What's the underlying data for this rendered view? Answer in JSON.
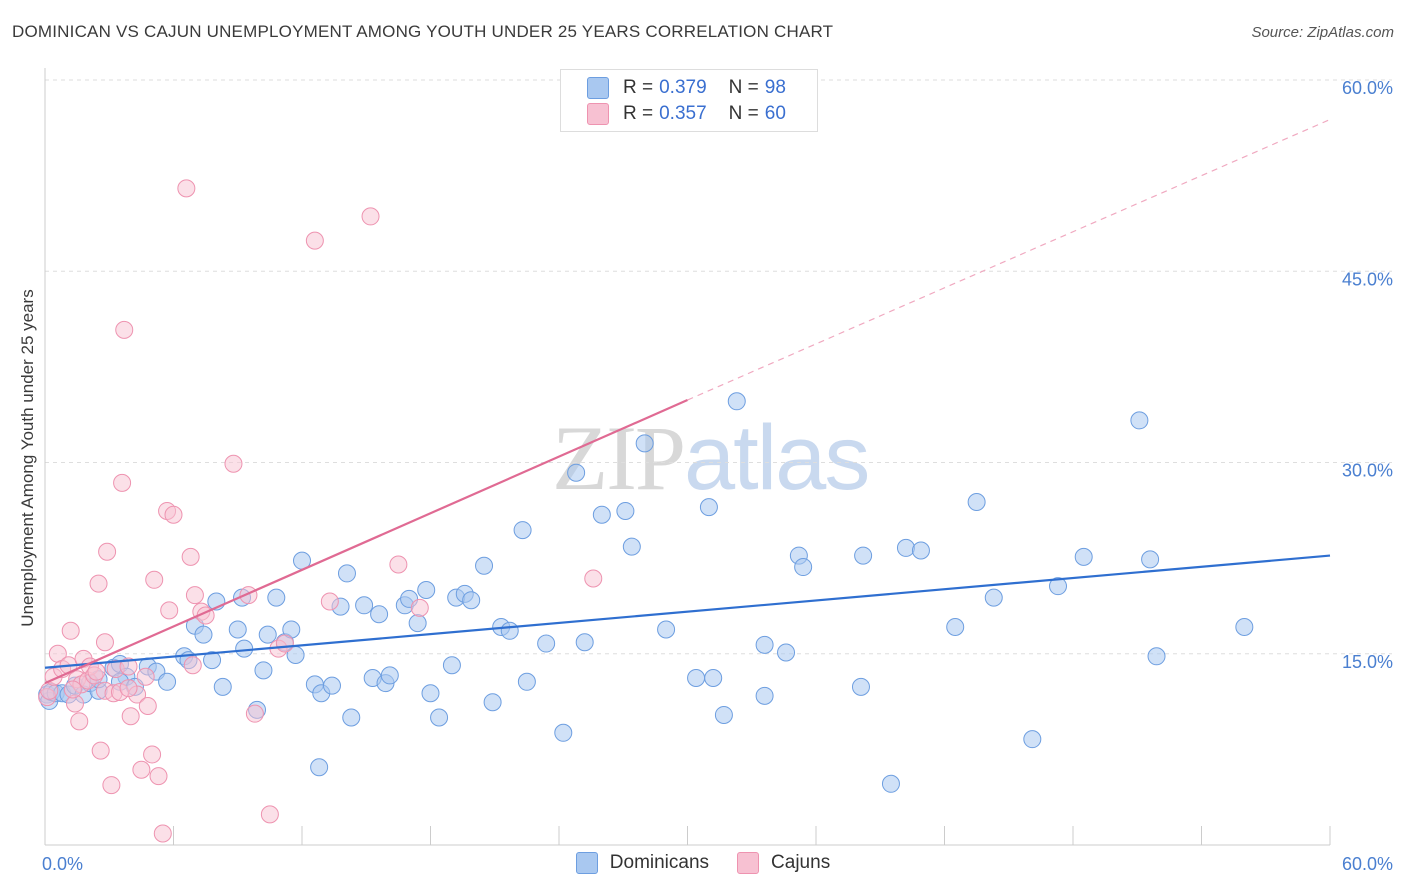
{
  "header": {
    "title": "DOMINICAN VS CAJUN UNEMPLOYMENT AMONG YOUTH UNDER 25 YEARS CORRELATION CHART",
    "source": "Source: ZipAtlas.com"
  },
  "watermark": {
    "zip": "ZIP",
    "atlas": "atlas"
  },
  "legend": {
    "rows": [
      {
        "r_label": "R =",
        "r_value": "0.379",
        "n_label": "N =",
        "n_value": "98"
      },
      {
        "r_label": "R =",
        "r_value": "0.357",
        "n_label": "N =",
        "n_value": "60"
      }
    ]
  },
  "bottom_legend": {
    "dominicans": "Dominicans",
    "cajuns": "Cajuns"
  },
  "colors": {
    "dominican_fill": "#a9c8f0",
    "dominican_stroke": "#6d9ee0",
    "dominican_line": "#2f6fd0",
    "cajun_fill": "#f7c1d2",
    "cajun_stroke": "#ee93b0",
    "cajun_line": "#e06a93",
    "grid": "#dedede",
    "tick_text": "#4a7fd0"
  },
  "chart_data": {
    "type": "scatter",
    "title": "DOMINICAN VS CAJUN UNEMPLOYMENT AMONG YOUTH UNDER 25 YEARS CORRELATION CHART",
    "xlabel": "",
    "ylabel": "Unemployment Among Youth under 25 years",
    "xlim": [
      0,
      60
    ],
    "ylim": [
      0,
      60
    ],
    "x_tick_labels": [
      "0.0%",
      "60.0%"
    ],
    "y_ticks": [
      15,
      30,
      45,
      60
    ],
    "y_tick_labels": [
      "15.0%",
      "30.0%",
      "45.0%",
      "60.0%"
    ],
    "grid": true,
    "legend_position": "top-center",
    "series": [
      {
        "name": "Dominicans",
        "r": 0.379,
        "n": 98,
        "trend": {
          "x": [
            0,
            60
          ],
          "y": [
            13.9,
            22.7
          ],
          "style": "solid"
        },
        "points": [
          [
            0.1,
            11.8
          ],
          [
            0.2,
            11.3
          ],
          [
            0.3,
            12.0
          ],
          [
            0.5,
            11.9
          ],
          [
            0.8,
            11.9
          ],
          [
            1.1,
            11.8
          ],
          [
            1.4,
            12.5
          ],
          [
            1.8,
            11.8
          ],
          [
            2.1,
            12.7
          ],
          [
            2.5,
            12.1
          ],
          [
            2.5,
            13.0
          ],
          [
            3.2,
            13.9
          ],
          [
            3.5,
            14.2
          ],
          [
            3.8,
            13.2
          ],
          [
            3.5,
            12.8
          ],
          [
            4.2,
            12.4
          ],
          [
            4.8,
            14.0
          ],
          [
            5.2,
            13.6
          ],
          [
            5.7,
            12.8
          ],
          [
            6.5,
            14.8
          ],
          [
            6.7,
            14.5
          ],
          [
            7.0,
            17.2
          ],
          [
            7.4,
            16.5
          ],
          [
            7.8,
            14.5
          ],
          [
            8.0,
            19.1
          ],
          [
            8.3,
            12.4
          ],
          [
            9.0,
            16.9
          ],
          [
            9.2,
            19.4
          ],
          [
            9.3,
            15.4
          ],
          [
            9.9,
            10.6
          ],
          [
            10.2,
            13.7
          ],
          [
            10.4,
            16.5
          ],
          [
            10.8,
            19.4
          ],
          [
            11.2,
            15.9
          ],
          [
            11.5,
            16.9
          ],
          [
            11.7,
            14.9
          ],
          [
            12.0,
            22.3
          ],
          [
            12.6,
            12.6
          ],
          [
            12.8,
            6.1
          ],
          [
            12.9,
            11.9
          ],
          [
            13.4,
            12.5
          ],
          [
            13.8,
            18.7
          ],
          [
            14.1,
            21.3
          ],
          [
            14.3,
            10.0
          ],
          [
            14.9,
            18.8
          ],
          [
            15.3,
            13.1
          ],
          [
            15.6,
            18.1
          ],
          [
            15.9,
            12.7
          ],
          [
            16.1,
            13.3
          ],
          [
            16.8,
            18.8
          ],
          [
            17.0,
            19.3
          ],
          [
            17.4,
            17.4
          ],
          [
            17.8,
            20.0
          ],
          [
            18.0,
            11.9
          ],
          [
            18.4,
            10.0
          ],
          [
            19.0,
            14.1
          ],
          [
            19.2,
            19.4
          ],
          [
            19.6,
            19.7
          ],
          [
            19.9,
            19.2
          ],
          [
            20.5,
            21.9
          ],
          [
            20.9,
            11.2
          ],
          [
            21.3,
            17.1
          ],
          [
            21.7,
            16.8
          ],
          [
            22.3,
            24.7
          ],
          [
            22.5,
            12.8
          ],
          [
            23.4,
            15.8
          ],
          [
            24.2,
            8.8
          ],
          [
            24.8,
            29.2
          ],
          [
            25.2,
            15.9
          ],
          [
            26.0,
            25.9
          ],
          [
            27.1,
            26.2
          ],
          [
            27.4,
            23.4
          ],
          [
            28.0,
            31.5
          ],
          [
            29.0,
            16.9
          ],
          [
            30.4,
            13.1
          ],
          [
            31.0,
            26.5
          ],
          [
            31.2,
            13.1
          ],
          [
            31.7,
            10.2
          ],
          [
            32.3,
            34.8
          ],
          [
            33.6,
            11.7
          ],
          [
            33.6,
            15.7
          ],
          [
            34.6,
            15.1
          ],
          [
            35.2,
            22.7
          ],
          [
            35.4,
            21.8
          ],
          [
            38.1,
            12.4
          ],
          [
            38.2,
            22.7
          ],
          [
            39.5,
            4.8
          ],
          [
            40.2,
            23.3
          ],
          [
            40.9,
            23.1
          ],
          [
            42.5,
            17.1
          ],
          [
            43.5,
            26.9
          ],
          [
            44.3,
            19.4
          ],
          [
            46.1,
            8.3
          ],
          [
            47.3,
            20.3
          ],
          [
            48.5,
            22.6
          ],
          [
            51.1,
            33.3
          ],
          [
            51.6,
            22.4
          ],
          [
            51.9,
            14.8
          ],
          [
            56.0,
            17.1
          ]
        ]
      },
      {
        "name": "Cajuns",
        "r": 0.357,
        "n": 60,
        "trend": {
          "x": [
            0,
            30
          ],
          "y": [
            12.7,
            34.9
          ],
          "dashed_extension": {
            "x": [
              30,
              60
            ],
            "y": [
              34.9,
              56.9
            ]
          }
        },
        "points": [
          [
            0.1,
            11.6
          ],
          [
            0.2,
            12.1
          ],
          [
            0.4,
            13.2
          ],
          [
            0.6,
            15.0
          ],
          [
            0.8,
            13.8
          ],
          [
            1.1,
            14.1
          ],
          [
            1.2,
            16.8
          ],
          [
            1.4,
            11.1
          ],
          [
            1.5,
            13.0
          ],
          [
            1.6,
            9.7
          ],
          [
            1.7,
            12.6
          ],
          [
            1.8,
            14.6
          ],
          [
            2.0,
            12.9
          ],
          [
            2.1,
            14.0
          ],
          [
            2.3,
            13.3
          ],
          [
            2.5,
            20.5
          ],
          [
            2.6,
            7.4
          ],
          [
            2.8,
            12.1
          ],
          [
            2.8,
            15.9
          ],
          [
            2.9,
            23.0
          ],
          [
            3.1,
            4.7
          ],
          [
            3.2,
            11.9
          ],
          [
            3.3,
            13.8
          ],
          [
            3.5,
            12.0
          ],
          [
            3.6,
            28.4
          ],
          [
            3.7,
            40.4
          ],
          [
            3.9,
            14.0
          ],
          [
            4.0,
            10.1
          ],
          [
            4.3,
            11.8
          ],
          [
            4.5,
            5.9
          ],
          [
            4.7,
            13.2
          ],
          [
            4.8,
            10.9
          ],
          [
            5.0,
            7.1
          ],
          [
            5.1,
            20.8
          ],
          [
            5.3,
            5.4
          ],
          [
            5.5,
            0.9
          ],
          [
            5.7,
            26.2
          ],
          [
            5.8,
            18.4
          ],
          [
            6.0,
            25.9
          ],
          [
            6.6,
            51.5
          ],
          [
            6.8,
            22.6
          ],
          [
            6.9,
            14.1
          ],
          [
            7.0,
            19.6
          ],
          [
            7.3,
            18.3
          ],
          [
            7.5,
            18.0
          ],
          [
            8.8,
            29.9
          ],
          [
            9.5,
            19.6
          ],
          [
            9.8,
            10.3
          ],
          [
            10.5,
            2.4
          ],
          [
            10.9,
            15.4
          ],
          [
            11.2,
            15.8
          ],
          [
            12.6,
            47.4
          ],
          [
            13.3,
            19.1
          ],
          [
            15.2,
            49.3
          ],
          [
            16.5,
            22.0
          ],
          [
            17.5,
            18.6
          ],
          [
            25.6,
            20.9
          ],
          [
            1.3,
            12.2
          ],
          [
            2.4,
            13.6
          ],
          [
            3.9,
            12.3
          ]
        ]
      }
    ]
  }
}
